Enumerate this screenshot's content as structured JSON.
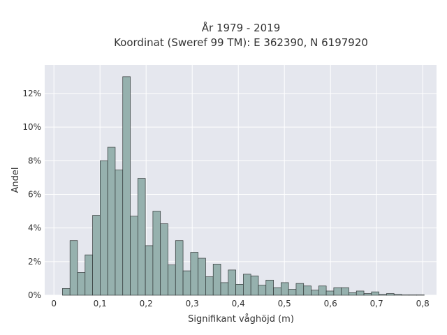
{
  "chart_data": {
    "type": "bar",
    "title": "År 1979 - 2019",
    "subtitle": "Koordinat (Sweref 99 TM): E 362390, N 6197920",
    "xlabel": "Signifikant våghöjd (m)",
    "ylabel": "Andel",
    "xlim": [
      -0.02,
      0.83
    ],
    "ylim": [
      0,
      13.7
    ],
    "x_ticks": [
      {
        "value": 0,
        "label": "0"
      },
      {
        "value": 0.1,
        "label": "0,1"
      },
      {
        "value": 0.2,
        "label": "0,2"
      },
      {
        "value": 0.3,
        "label": "0,3"
      },
      {
        "value": 0.4,
        "label": "0,4"
      },
      {
        "value": 0.5,
        "label": "0,5"
      },
      {
        "value": 0.6,
        "label": "0,6"
      },
      {
        "value": 0.7,
        "label": "0,7"
      },
      {
        "value": 0.8,
        "label": "0,8"
      }
    ],
    "y_ticks": [
      {
        "value": 0,
        "label": "0%"
      },
      {
        "value": 2,
        "label": "2%"
      },
      {
        "value": 4,
        "label": "4%"
      },
      {
        "value": 6,
        "label": "6%"
      },
      {
        "value": 8,
        "label": "8%"
      },
      {
        "value": 10,
        "label": "10%"
      },
      {
        "value": 12,
        "label": "12%"
      }
    ],
    "grid": true,
    "bin_width": 0.01635,
    "bin_starts": [
      0.0185,
      0.03485,
      0.0512,
      0.06755,
      0.0839,
      0.10025,
      0.1166,
      0.13295,
      0.1493,
      0.16565,
      0.182,
      0.19835,
      0.2147,
      0.23105,
      0.2474,
      0.26375,
      0.2801,
      0.29645,
      0.3128,
      0.32915,
      0.3455,
      0.36185,
      0.3782,
      0.39455,
      0.4109,
      0.42725,
      0.4436,
      0.45995,
      0.4763,
      0.49265,
      0.509,
      0.52535,
      0.5417,
      0.55805,
      0.5744,
      0.59075,
      0.6071,
      0.62345,
      0.6398,
      0.65615,
      0.6725,
      0.68885,
      0.7052,
      0.72155,
      0.7379,
      0.75425,
      0.7706,
      0.78695
    ],
    "values": [
      0.4,
      3.25,
      1.35,
      2.4,
      4.75,
      8.0,
      8.8,
      7.45,
      13.0,
      4.7,
      6.95,
      2.95,
      5.0,
      4.25,
      1.8,
      3.25,
      1.45,
      2.55,
      2.2,
      1.1,
      1.85,
      0.75,
      1.5,
      0.65,
      1.25,
      1.15,
      0.6,
      0.9,
      0.45,
      0.75,
      0.35,
      0.7,
      0.55,
      0.3,
      0.55,
      0.25,
      0.45,
      0.45,
      0.15,
      0.25,
      0.1,
      0.2,
      0.05,
      0.1,
      0.05,
      0.02,
      0.02,
      0.02
    ],
    "colors": {
      "plot_bg": "#e5e7ee",
      "grid": "#ffffff",
      "bar_fill": "#96b1ae",
      "bar_stroke": "#303636",
      "text": "#333333",
      "page_bg": "#ffffff"
    }
  }
}
